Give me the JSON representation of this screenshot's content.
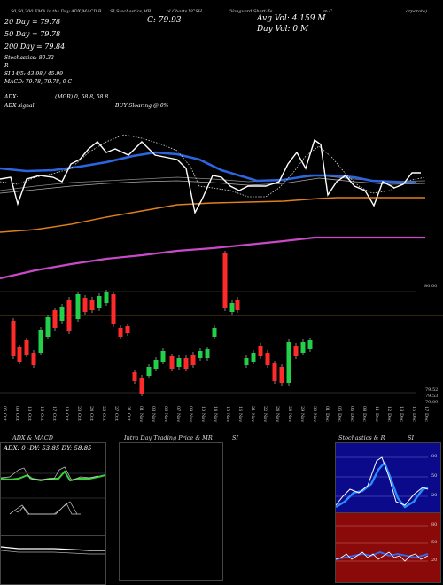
{
  "header": {
    "top_strip": "50,50,200  EMA lo ths Day ADX,MACD,B",
    "top_strip_2": "SI,Stochastics,MR",
    "top_strip_3": "ol Charts VCSH",
    "top_strip_4": "(Vanguard Short-Te",
    "top_strip_5": "m C",
    "top_strip_6": "orporate)",
    "overlay_price": "C: 79.93",
    "legend": [
      {
        "text": "20  Day = 79.78",
        "color": "#ffffff"
      },
      {
        "text": "50  Day = 79.78",
        "color": "#ffffff"
      },
      {
        "text": "200  Day = 79.84",
        "color": "#ffffff"
      }
    ],
    "stoch_line": "Stochastics: 80.32",
    "r_line": "R",
    "si_line": "SI 14/5: 43.98 / 45.99",
    "macd_line": "MACD: 79.78,  79.78,  0  C",
    "avg_vol": "Avg Vol: 4.159 M",
    "day_vol": "Day Vol: 0   M",
    "adx_line": "ADX:",
    "adx_val": "(MGR) 0,  58.8,  58.8",
    "adx_signal": "ADX  signal:",
    "buy_signal": "BUY Sloaring @ 0%"
  },
  "right_labels": {
    "mid": "80.00",
    "low1": "79.52",
    "low2": "79.53",
    "low3": "79.09"
  },
  "dates": [
    "05 Oct",
    "09 Oct",
    "13 Oct",
    "16 Oct",
    "17 Oct",
    "19 Oct",
    "23 Oct",
    "24 Oct",
    "26 Oct",
    "27 Oct",
    "31 Oct",
    "01 Nov",
    "03 Nov",
    "06 Nov",
    "07 Nov",
    "09 Nov",
    "10 Nov",
    "14 Nov",
    "15 Nov",
    "16 Nov",
    "21 Nov",
    "22 Nov",
    "24 Nov",
    "28 Nov",
    "29 Nov",
    "30 Nov",
    "01 Dec",
    "05 Dec",
    "06 Dec",
    "08 Dec",
    "11 Dec",
    "12 Dec",
    "13 Dec",
    "15 Dec",
    "17 Dec"
  ],
  "panels": {
    "adx": {
      "title": "ADX  & MACD",
      "label": "ADX: 0   -DY: 53.85  DY: 58.85"
    },
    "intraday": {
      "title": "Intra  Day Trading Price  & MR",
      "title_right": "SI"
    },
    "stoch": {
      "title": "Stochastics & R",
      "title_right": "SI",
      "ticks": [
        "80",
        "50",
        "20"
      ],
      "ticks2": [
        "80",
        "50",
        "20"
      ]
    }
  }
}
